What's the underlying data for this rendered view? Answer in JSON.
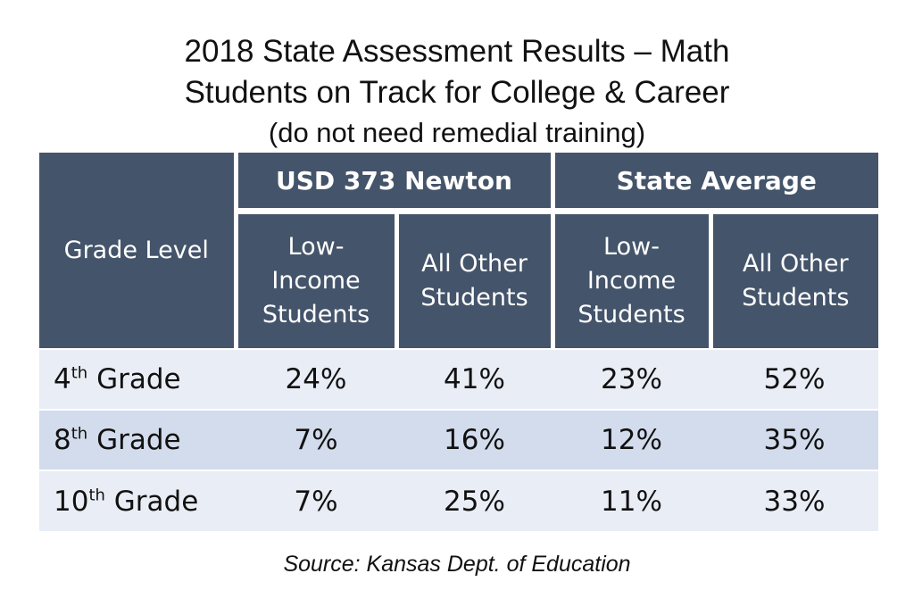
{
  "title": {
    "line1": "2018 State Assessment Results – Math",
    "line2": "Students on Track for College & Career",
    "line3": "(do not need remedial training)"
  },
  "colors": {
    "header": "#44546a",
    "row_light": "#e9edf5",
    "row_dark": "#d3dcec"
  },
  "chart_data": {
    "type": "table",
    "corner_header": "Grade Level",
    "groups": [
      "USD 373 Newton",
      "State Average"
    ],
    "columns": [
      {
        "group": "USD 373 Newton",
        "line1": "Low-",
        "line2": "Income",
        "line3": "Students"
      },
      {
        "group": "USD 373 Newton",
        "line1": "All Other",
        "line2": "Students"
      },
      {
        "group": "State Average",
        "line1": "Low-",
        "line2": "Income",
        "line3": "Students"
      },
      {
        "group": "State Average",
        "line1": "All Other",
        "line2": "Students"
      }
    ],
    "rows": [
      {
        "grade": "4",
        "suffix": "th",
        "label": "Grade",
        "values": [
          "24%",
          "41%",
          "23%",
          "52%"
        ]
      },
      {
        "grade": "8",
        "suffix": "th",
        "label": "Grade",
        "values": [
          "7%",
          "16%",
          "12%",
          "35%"
        ]
      },
      {
        "grade": "10",
        "suffix": "th",
        "label": "Grade",
        "values": [
          "7%",
          "25%",
          "11%",
          "33%"
        ]
      }
    ]
  },
  "source": "Source: Kansas Dept. of Education"
}
